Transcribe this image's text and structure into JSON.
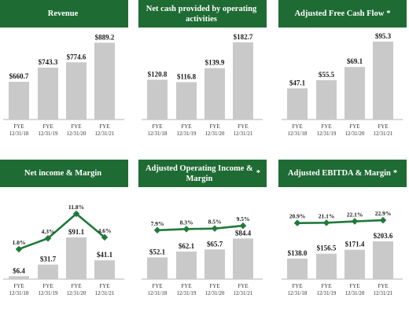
{
  "chart_data": [
    {
      "type": "bar",
      "title": "Revenue",
      "title_star": "",
      "categories": [
        "FYE 12/31/18",
        "FYE 12/31/19",
        "FYE 12/31/20",
        "FYE 12/31/21"
      ],
      "values": [
        660.7,
        743.3,
        774.6,
        889.2
      ],
      "value_labels": [
        "$660.7",
        "$743.3",
        "$774.6",
        "$889.2"
      ],
      "ylim": [
        440,
        900
      ]
    },
    {
      "type": "bar",
      "title": "Net cash provided by operating activities",
      "title_star": "",
      "categories": [
        "FYE 12/31/18",
        "FYE 12/31/19",
        "FYE 12/31/20",
        "FYE 12/31/21"
      ],
      "values": [
        120.8,
        116.8,
        139.9,
        182.7
      ],
      "value_labels": [
        "$120.8",
        "$116.8",
        "$139.9",
        "$182.7"
      ],
      "ylim": [
        55,
        185
      ]
    },
    {
      "type": "bar",
      "title": "Adjusted Free Cash Flow",
      "title_star": "*",
      "categories": [
        "FYE 12/31/18",
        "FYE 12/31/19",
        "FYE 12/31/20",
        "FYE 12/31/21"
      ],
      "values": [
        47.1,
        55.5,
        69.1,
        95.3
      ],
      "value_labels": [
        "$47.1",
        "$55.5",
        "$69.1",
        "$95.3"
      ],
      "ylim": [
        15,
        96
      ]
    },
    {
      "type": "bar",
      "title": "Net income & Margin",
      "title_star": "",
      "categories": [
        "FYE 12/31/18",
        "FYE 12/31/19",
        "FYE 12/31/20",
        "FYE 12/31/21"
      ],
      "values": [
        6.4,
        31.7,
        91.1,
        41.1
      ],
      "value_labels": [
        "$6.4",
        "$31.7",
        "$91.1",
        "$41.1"
      ],
      "ylim": [
        0,
        115
      ],
      "margin_series": {
        "values": [
          1.0,
          4.3,
          11.8,
          4.6
        ],
        "labels": [
          "1.0%",
          "4.3%",
          "11.8%",
          "4.6%"
        ],
        "ylim": [
          0,
          12
        ]
      }
    },
    {
      "type": "bar",
      "title": "Adjusted Operating Income & Margin",
      "title_star": "*",
      "categories": [
        "FYE 12/31/18",
        "FYE 12/31/19",
        "FYE 12/31/20",
        "FYE 12/31/21"
      ],
      "values": [
        52.1,
        62.1,
        65.7,
        84.4
      ],
      "value_labels": [
        "$52.1",
        "$62.1",
        "$65.7",
        "$84.4"
      ],
      "ylim": [
        15,
        105
      ],
      "margin_series": {
        "values": [
          7.9,
          8.3,
          8.5,
          9.5
        ],
        "labels": [
          "7.9%",
          "8.3%",
          "8.5%",
          "9.5%"
        ],
        "ylim": [
          0,
          14
        ]
      }
    },
    {
      "type": "bar",
      "title": "Adjusted EBITDA & Margin",
      "title_star": "*",
      "categories": [
        "FYE 12/31/18",
        "FYE 12/31/19",
        "FYE 12/31/20",
        "FYE 12/31/21"
      ],
      "values": [
        138.0,
        156.5,
        171.4,
        203.6
      ],
      "value_labels": [
        "$138.0",
        "$156.5",
        "$171.4",
        "$203.6"
      ],
      "ylim": [
        60,
        260
      ],
      "margin_series": {
        "values": [
          20.9,
          21.1,
          22.1,
          22.9
        ],
        "labels": [
          "20.9%",
          "21.1%",
          "22.1%",
          "22.9%"
        ],
        "ylim": [
          0,
          28
        ]
      }
    }
  ]
}
